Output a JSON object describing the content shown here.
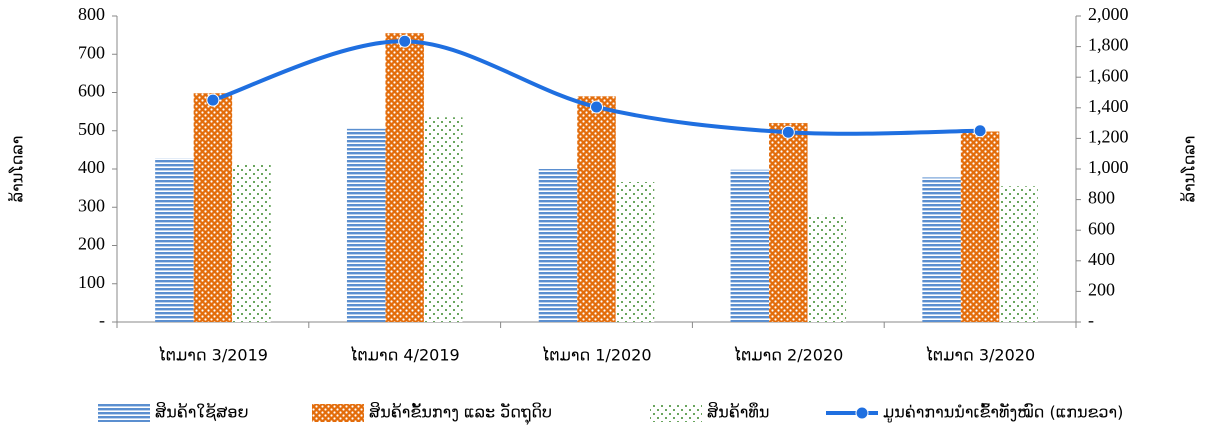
{
  "chart_data": {
    "type": "bar",
    "categories": [
      "ໄຕມາດ 3/2019",
      "ໄຕມາດ 4/2019",
      "ໄຕມາດ 1/2020",
      "ໄຕມາດ 2/2020",
      "ໄຕມາດ 3/2020"
    ],
    "ylabel": "ລ້ານໂດລາ",
    "y2label": "ລ້ານໂດລາ",
    "ylim": [
      0,
      800
    ],
    "yticks": [
      {
        "value": 0,
        "label": "-"
      },
      100,
      200,
      300,
      400,
      500,
      600,
      700,
      800
    ],
    "y2lim": [
      0,
      2000
    ],
    "y2ticks": [
      {
        "value": 0,
        "label": "-"
      },
      200,
      400,
      600,
      800,
      {
        "value": 1000,
        "label": "1,000"
      },
      {
        "value": 1200,
        "label": "1,200"
      },
      {
        "value": 1400,
        "label": "1,400"
      },
      {
        "value": 1600,
        "label": "1,600"
      },
      {
        "value": 1800,
        "label": "1,800"
      },
      {
        "value": 2000,
        "label": "2,000"
      }
    ],
    "legend": "bottom",
    "series": [
      {
        "name": "ສິນຄ້າໃຊ້ສອຍ",
        "color": "#5b8fd0",
        "pattern": "stripes",
        "values": [
          428,
          505,
          400,
          398,
          378
        ]
      },
      {
        "name": "ສິນຄ້າຂັ້ນກາງ ແລະ ວັດຖຸດິບ",
        "color": "#e36c0a",
        "pattern": "dots",
        "values": [
          598,
          755,
          590,
          520,
          498
        ]
      },
      {
        "name": "ສິນຄ້າທຶນ",
        "color": "#3a8a2a",
        "pattern": "sparse-dots",
        "values": [
          413,
          535,
          366,
          280,
          355
        ]
      },
      {
        "name": "ມູນຄ່າການນຳເຂົ້າທັງໝົດ (ແກນຂວາ)",
        "color": "#1f6fe0",
        "type": "line",
        "axis": "y2",
        "values": [
          1450,
          1835,
          1405,
          1240,
          1250
        ]
      }
    ]
  }
}
